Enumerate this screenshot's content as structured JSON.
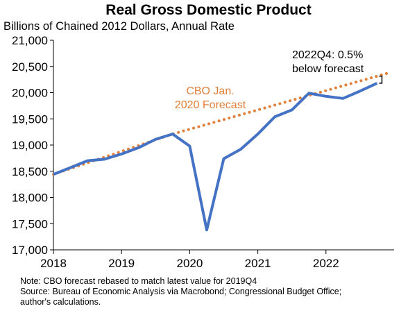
{
  "header": {
    "title": "Real Gross Domestic Product",
    "subtitle": "Billions of Chained 2012 Dollars, Annual Rate"
  },
  "annotations": {
    "gap_line1": "2022Q4: 0.5%",
    "gap_line2": "below forecast",
    "forecast_line1": "CBO Jan.",
    "forecast_line2": "2020 Forecast"
  },
  "footer": {
    "note": "Note: CBO forecast rebased to match latest value for 2019Q4",
    "source_line1": "Source: Bureau of Economic Analysis via Macrobond; Congressional Budget Office;",
    "source_line2": "author's calculations."
  },
  "colors": {
    "actual": "#4472C4",
    "forecast": "#E0803A"
  },
  "chart_data": {
    "type": "line",
    "title": "Real Gross Domestic Product",
    "ylabel": "Billions of Chained 2012 Dollars, Annual Rate",
    "xlabel": "",
    "xlim": [
      2018,
      2023
    ],
    "ylim": [
      17000,
      21000
    ],
    "y_ticks": [
      17000,
      17500,
      18000,
      18500,
      19000,
      19500,
      20000,
      20500,
      21000
    ],
    "y_tick_labels": [
      "17,000",
      "17,500",
      "18,000",
      "18,500",
      "19,000",
      "19,500",
      "20,000",
      "20,500",
      "21,000"
    ],
    "x_ticks": [
      2018,
      2019,
      2020,
      2021,
      2022
    ],
    "x_tick_labels": [
      "2018",
      "2019",
      "2020",
      "2021",
      "2022"
    ],
    "grid": false,
    "legend": "none",
    "series": [
      {
        "x": [
          2018.0,
          2018.25,
          2018.5,
          2018.75,
          2019.0,
          2019.25,
          2019.5,
          2019.75,
          2020.0,
          2020.25,
          2020.5,
          2020.75,
          2021.0,
          2021.25,
          2021.5,
          2021.75,
          2022.0,
          2022.25,
          2022.5,
          2022.75
        ],
        "values": [
          18440,
          18570,
          18700,
          18730,
          18830,
          18950,
          19110,
          19210,
          18980,
          17380,
          18740,
          18920,
          19210,
          19540,
          19670,
          19990,
          19930,
          19890,
          20030,
          20180
        ],
        "style": "solid"
      },
      {
        "x": [
          2018.0,
          2019.75,
          2022.9
        ],
        "values": [
          18440,
          19210,
          20370
        ],
        "style": "dotted"
      }
    ]
  }
}
